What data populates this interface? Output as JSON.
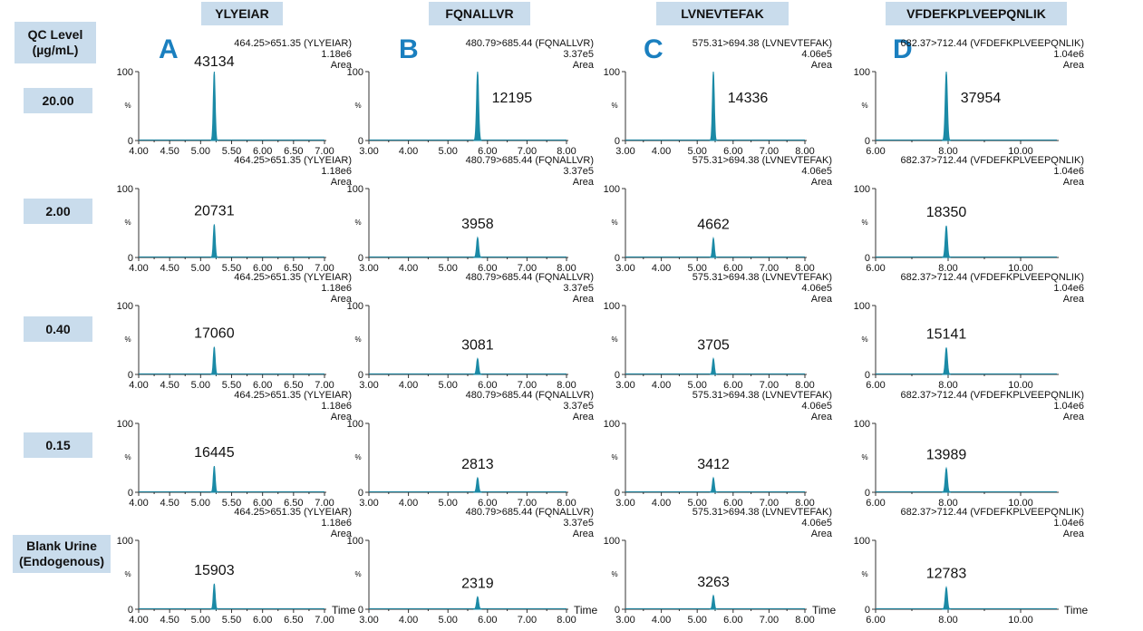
{
  "qc_header": [
    "QC Level",
    "(µg/mL)"
  ],
  "columns": [
    {
      "label": "YLYEIAR",
      "letter": "A"
    },
    {
      "label": "FQNALLVR",
      "letter": "B"
    },
    {
      "label": "LVNEVTEFAK",
      "letter": "C"
    },
    {
      "label": "VFDEFKPLVEEPQNLIK",
      "letter": "D"
    }
  ],
  "rows": [
    {
      "label": [
        "20.00"
      ]
    },
    {
      "label": [
        "2.00"
      ]
    },
    {
      "label": [
        "0.40"
      ]
    },
    {
      "label": [
        "0.15"
      ]
    },
    {
      "label": [
        "Blank Urine",
        "(Endogenous)"
      ]
    }
  ],
  "colors": {
    "peak": "#1b8aa6",
    "header_bg": "#c9dcec",
    "letter": "#1a7fbf"
  },
  "x_axis_title": "Time",
  "chart_data": [
    {
      "type": "line",
      "transition": "464.25>651.35 (YLYEIAR)",
      "scale": "1.18e6",
      "mode": "Area",
      "ylabel": "%",
      "ylim": [
        0,
        100
      ],
      "yticks": [
        "0",
        "100"
      ],
      "xlim": [
        4.0,
        7.0
      ],
      "xticks": [
        "4.00",
        "4.50",
        "5.00",
        "5.50",
        "6.00",
        "6.50",
        "7.00"
      ],
      "peak_rt": 5.22,
      "peak_width": 0.02,
      "peaks": [
        {
          "area": "43134",
          "height": 100
        },
        {
          "area": "20731",
          "height": 48
        },
        {
          "area": "17060",
          "height": 40
        },
        {
          "area": "16445",
          "height": 38
        },
        {
          "area": "15903",
          "height": 37
        }
      ]
    },
    {
      "type": "line",
      "transition": "480.79>685.44 (FQNALLVR)",
      "scale": "3.37e5",
      "mode": "Area",
      "ylabel": "%",
      "ylim": [
        0,
        100
      ],
      "yticks": [
        "0",
        "100"
      ],
      "xlim": [
        3.0,
        8.0
      ],
      "xticks": [
        "3.00",
        "4.00",
        "5.00",
        "6.00",
        "7.00",
        "8.00"
      ],
      "peak_rt": 5.75,
      "peak_width": 0.035,
      "peaks": [
        {
          "area": "12195",
          "height": 100
        },
        {
          "area": "3958",
          "height": 29
        },
        {
          "area": "3081",
          "height": 23
        },
        {
          "area": "2813",
          "height": 21
        },
        {
          "area": "2319",
          "height": 18
        }
      ]
    },
    {
      "type": "line",
      "transition": "575.31>694.38 (LVNEVTEFAK)",
      "scale": "4.06e5",
      "mode": "Area",
      "ylabel": "%",
      "ylim": [
        0,
        100
      ],
      "yticks": [
        "0",
        "100"
      ],
      "xlim": [
        3.0,
        8.0
      ],
      "xticks": [
        "3.00",
        "4.00",
        "5.00",
        "6.00",
        "7.00",
        "8.00"
      ],
      "peak_rt": 5.45,
      "peak_width": 0.035,
      "peaks": [
        {
          "area": "14336",
          "height": 100
        },
        {
          "area": "4662",
          "height": 28
        },
        {
          "area": "3705",
          "height": 23
        },
        {
          "area": "3412",
          "height": 21
        },
        {
          "area": "3263",
          "height": 20
        }
      ]
    },
    {
      "type": "line",
      "transition": "682.37>712.44 (VFDEFKPLVEEPQNLIK)",
      "scale": "1.04e6",
      "mode": "Area",
      "ylabel": "%",
      "ylim": [
        0,
        100
      ],
      "yticks": [
        "0",
        "100"
      ],
      "xlim": [
        6.0,
        11.0
      ],
      "xticks": [
        "6.00",
        "8.00",
        "10.00"
      ],
      "peak_rt": 7.95,
      "peak_width": 0.04,
      "peaks": [
        {
          "area": "37954",
          "height": 100
        },
        {
          "area": "18350",
          "height": 46
        },
        {
          "area": "15141",
          "height": 39
        },
        {
          "area": "13989",
          "height": 35
        },
        {
          "area": "12783",
          "height": 32
        }
      ]
    }
  ]
}
